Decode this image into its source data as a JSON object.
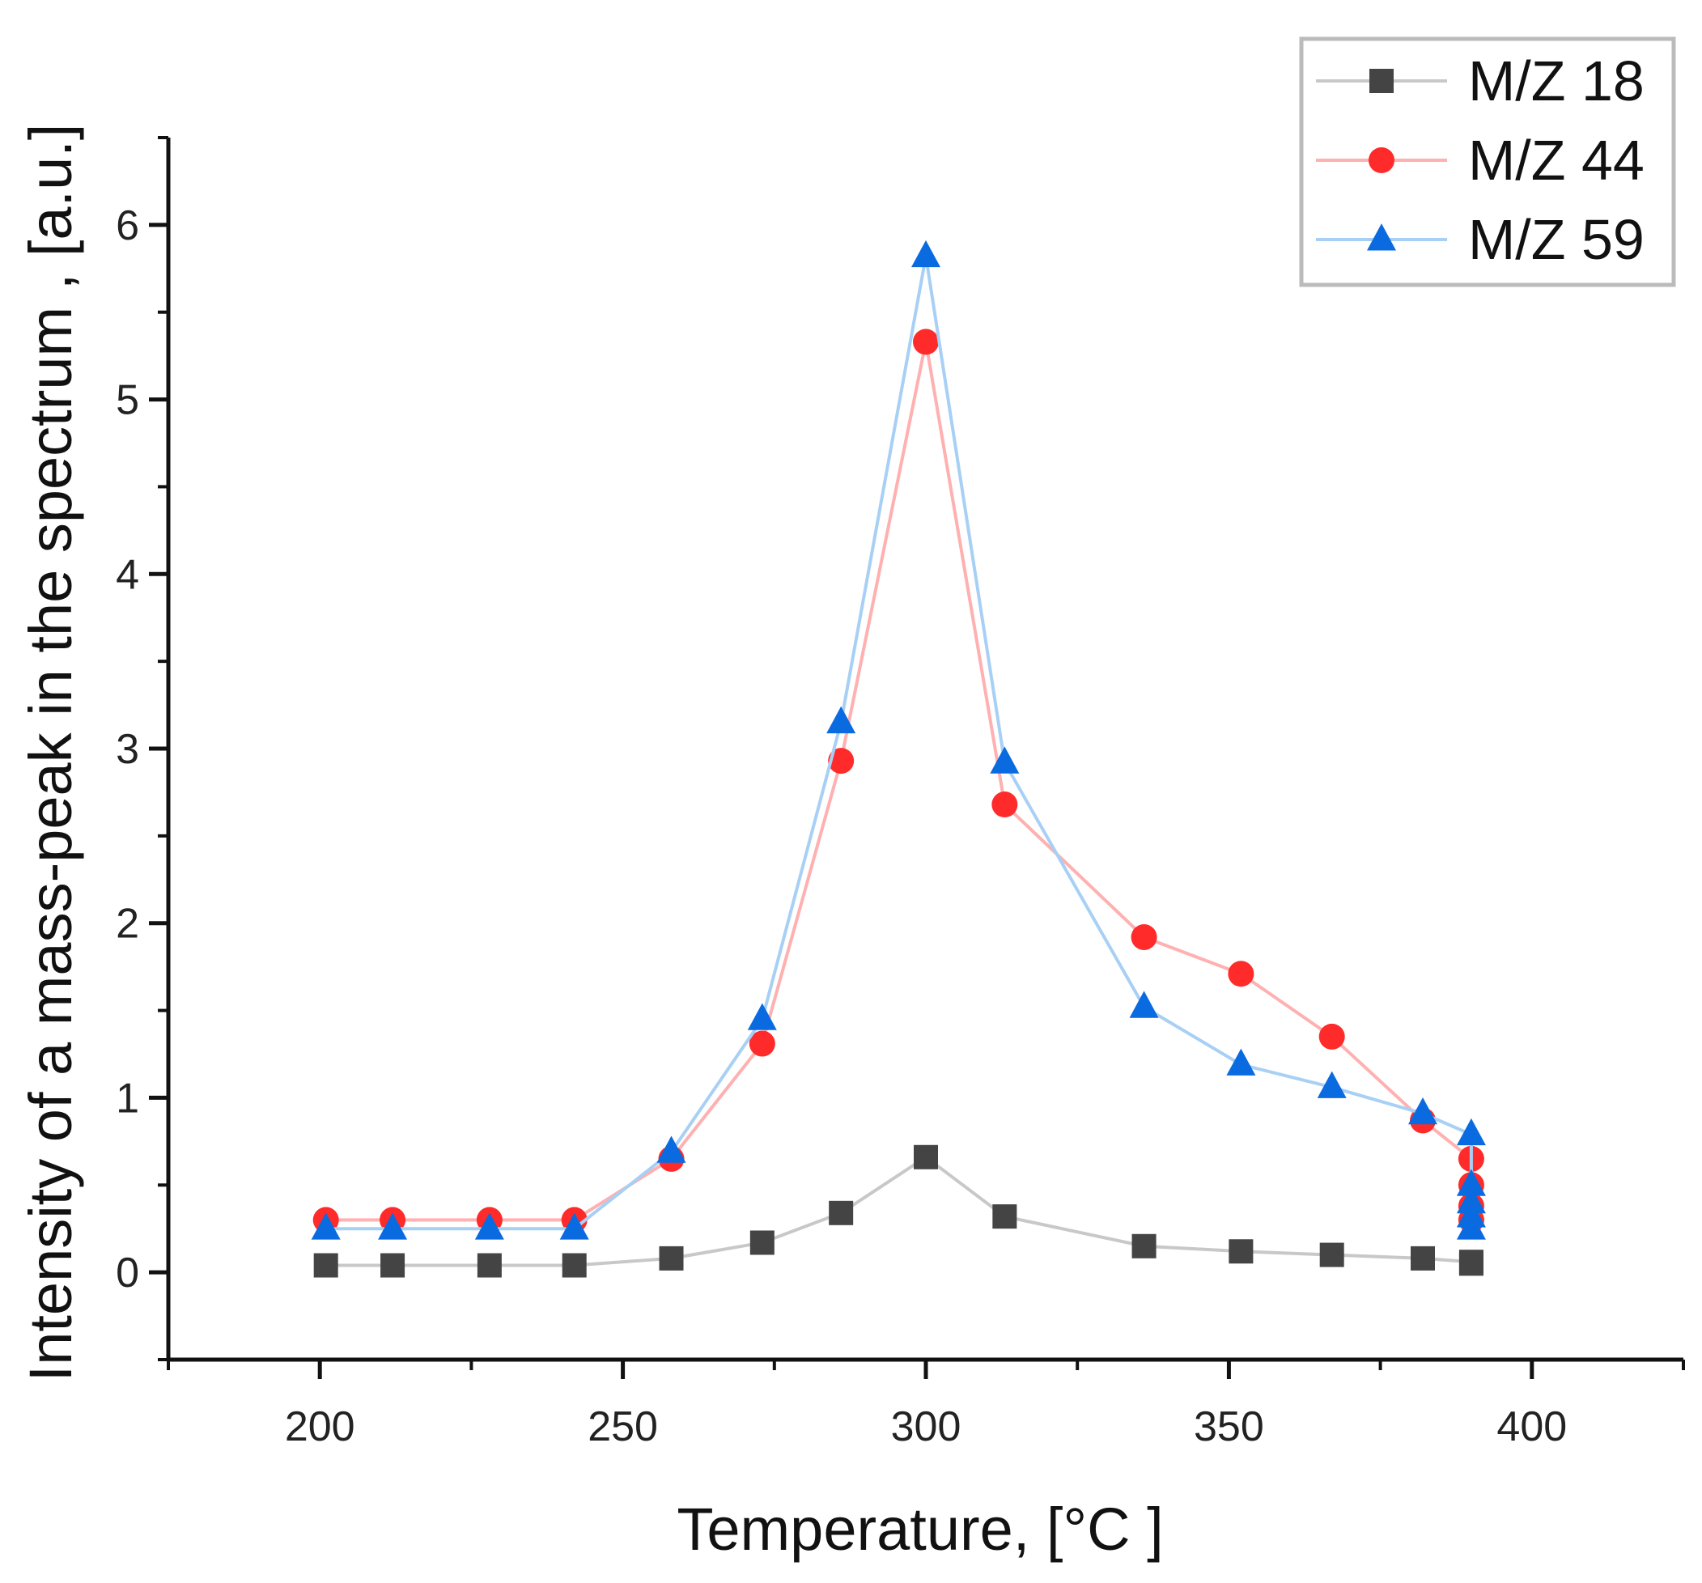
{
  "chart_data": {
    "type": "line",
    "title": "",
    "xlabel": "Temperature, [°C ]",
    "ylabel": "Intensity of a mass-peak in the spectrum , [a.u.]",
    "xlim": [
      175,
      425
    ],
    "ylim": [
      -0.5,
      6.5
    ],
    "x_ticks": [
      200,
      250,
      300,
      350,
      400
    ],
    "x_tick_labels": [
      "200",
      "250",
      "300",
      "350",
      "400"
    ],
    "y_ticks": [
      0,
      1,
      2,
      3,
      4,
      5,
      6
    ],
    "y_tick_labels": [
      "0",
      "1",
      "2",
      "3",
      "4",
      "5",
      "6"
    ],
    "grid": false,
    "legend_position": "top-right",
    "series": [
      {
        "name": "M/Z 18",
        "color": "#444444",
        "line_color": "#c8c8c8",
        "marker": "square",
        "x": [
          201,
          212,
          228,
          242,
          258,
          273,
          286,
          300,
          313,
          336,
          352,
          367,
          382,
          390,
          390
        ],
        "y": [
          0.04,
          0.04,
          0.04,
          0.04,
          0.08,
          0.17,
          0.34,
          0.66,
          0.32,
          0.15,
          0.12,
          0.1,
          0.08,
          0.06,
          0.05
        ]
      },
      {
        "name": "M/Z 44",
        "color": "#ff2a2a",
        "line_color": "#ffb0b0",
        "marker": "circle",
        "x": [
          201,
          212,
          228,
          242,
          258,
          273,
          286,
          300,
          313,
          336,
          352,
          367,
          382,
          390,
          390,
          390,
          390
        ],
        "y": [
          0.3,
          0.3,
          0.3,
          0.3,
          0.65,
          1.31,
          2.93,
          5.33,
          2.68,
          1.92,
          1.71,
          1.35,
          0.87,
          0.65,
          0.5,
          0.38,
          0.3
        ]
      },
      {
        "name": "M/Z 59",
        "color": "#0a6be0",
        "line_color": "#a8d0f5",
        "marker": "triangle",
        "x": [
          201,
          212,
          228,
          242,
          258,
          273,
          286,
          300,
          313,
          336,
          352,
          367,
          382,
          390,
          390,
          390,
          390,
          390
        ],
        "y": [
          0.25,
          0.25,
          0.25,
          0.25,
          0.69,
          1.45,
          3.15,
          5.82,
          2.92,
          1.52,
          1.19,
          1.06,
          0.91,
          0.79,
          0.5,
          0.4,
          0.32,
          0.25
        ]
      }
    ]
  }
}
